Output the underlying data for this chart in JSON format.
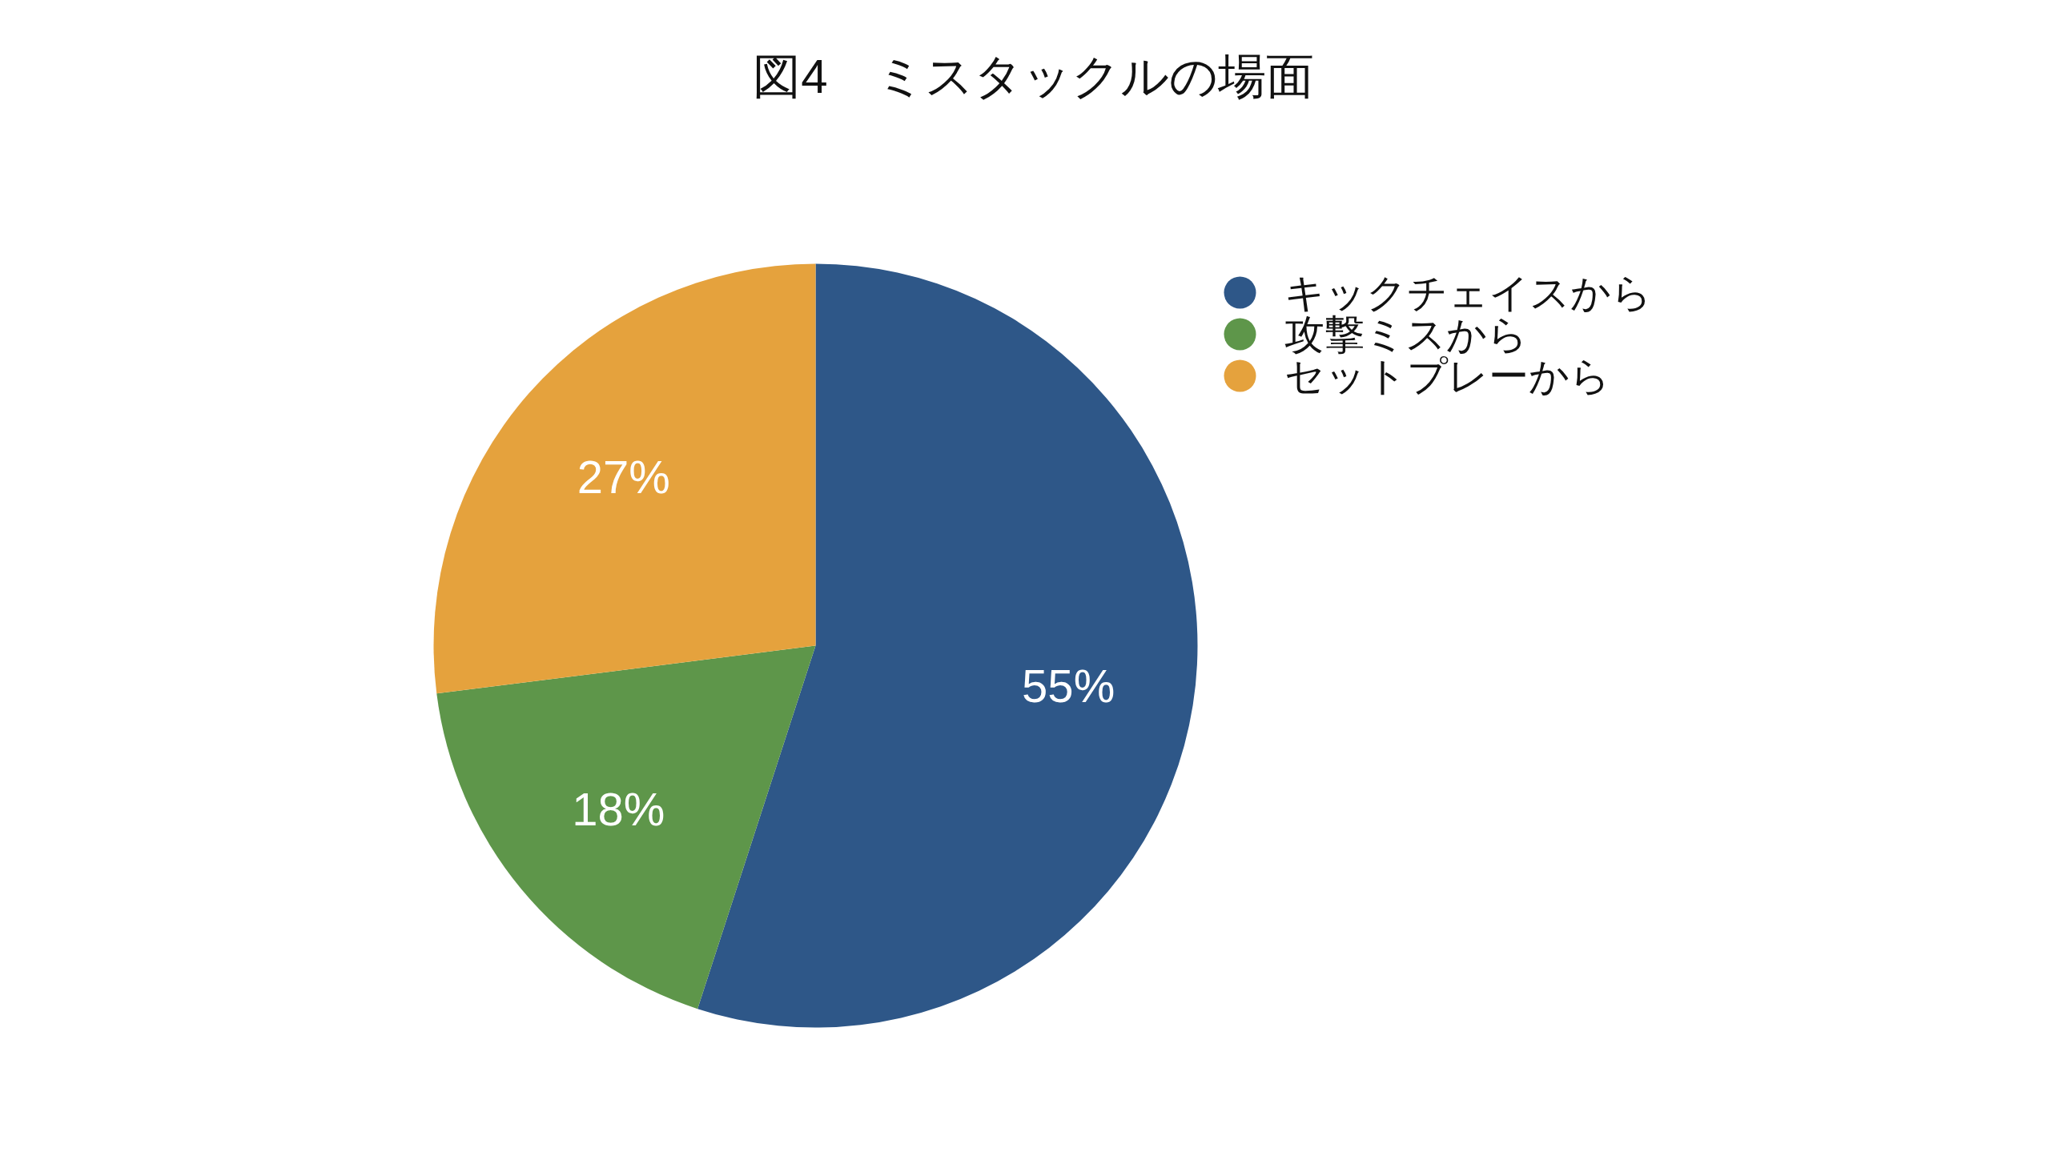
{
  "chart_data": {
    "type": "pie",
    "title": "図4　ミスタックルの場面",
    "categories": [
      "キックチェイスから",
      "攻撃ミスから",
      "セットプレーから"
    ],
    "values": [
      55,
      18,
      27
    ],
    "colors": [
      "#2e5788",
      "#5e964a",
      "#e5a23d"
    ],
    "value_labels": [
      "55%",
      "18%",
      "27%"
    ],
    "legend": "right"
  }
}
